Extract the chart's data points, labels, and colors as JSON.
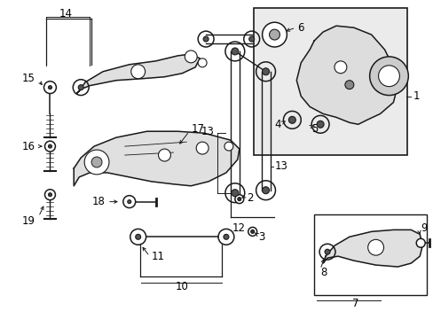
{
  "bg_color": "#ffffff",
  "lc": "#1a1a1a",
  "fc": "#f0f0f0",
  "box_fc": "#e8e8e8",
  "label_fs": 8.5,
  "leader_lw": 0.7,
  "part_lw": 1.1
}
